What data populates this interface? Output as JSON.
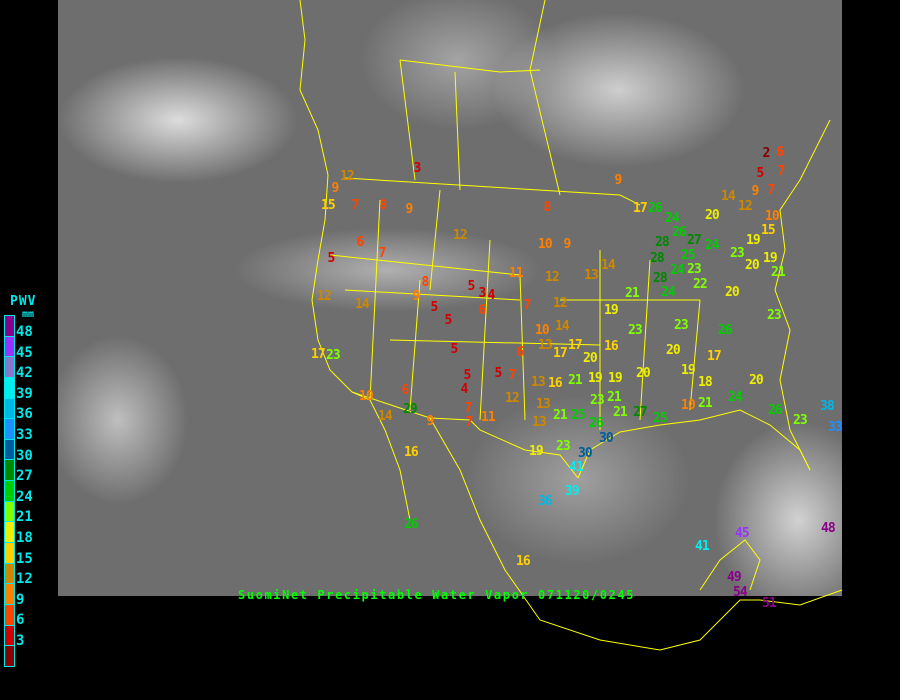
{
  "title": "SuomiNet Precipitable Water Vapor 071120/0245",
  "legend": {
    "title": "PWV",
    "unit": "mm",
    "labels": [
      "48",
      "45",
      "42",
      "39",
      "36",
      "33",
      "30",
      "27",
      "24",
      "21",
      "18",
      "15",
      "12",
      "9",
      "6",
      "3"
    ],
    "colors": [
      "#8b008b",
      "#9933ff",
      "#8877cc",
      "#00eeee",
      "#00b8e8",
      "#1e90ff",
      "#005c9c",
      "#008800",
      "#00cc00",
      "#80ff00",
      "#eeee00",
      "#ffd000",
      "#cc8800",
      "#ff8000",
      "#ff4400",
      "#d00000",
      "#880000"
    ]
  },
  "stations": [
    3,
    9,
    12,
    15,
    7,
    8,
    9,
    6,
    7,
    5,
    12,
    8,
    9,
    10,
    9,
    11,
    12,
    13,
    14,
    12,
    14,
    8,
    9,
    5,
    5,
    3,
    4,
    6,
    5,
    7,
    12,
    19,
    10,
    14,
    6,
    13,
    17,
    20,
    16,
    23,
    23,
    26,
    23,
    20,
    21,
    28,
    24,
    5,
    5,
    4,
    5,
    7,
    13,
    16,
    21,
    19,
    19,
    6,
    10,
    29,
    9,
    7,
    7,
    11,
    12,
    13,
    13,
    21,
    25,
    23,
    26,
    21,
    20,
    20,
    17,
    19,
    18,
    20,
    21,
    27,
    25,
    10,
    21,
    24,
    26,
    23,
    38,
    33,
    30,
    23,
    30,
    19,
    41,
    39,
    36,
    16,
    26,
    16,
    41,
    45,
    49,
    54,
    51,
    48,
    17,
    23,
    14,
    14,
    12,
    26,
    9,
    7,
    10,
    15,
    19,
    19,
    20,
    21,
    2,
    5,
    6,
    7,
    23,
    17,
    20,
    24,
    26,
    27,
    28,
    24,
    25,
    23,
    22,
    28,
    24,
    17
  ]
}
